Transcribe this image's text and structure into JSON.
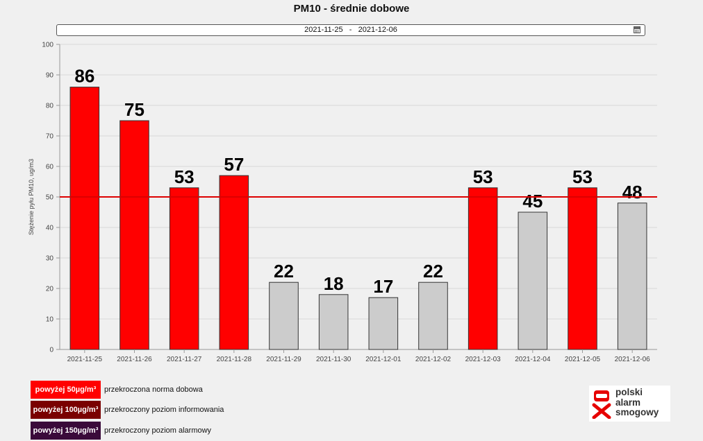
{
  "title": "PM10 - średnie dobowe",
  "date_range": {
    "from": "2021-11-25",
    "separator": "-",
    "to": "2021-12-06"
  },
  "colors": {
    "exceeded": "#ff0000",
    "normal": "#cccccc",
    "threshold_line": "#dd0000",
    "info_level": "#7a0000",
    "alarm_level": "#3a0a3a"
  },
  "chart_data": {
    "type": "bar",
    "title": "PM10 - średnie dobowe",
    "ylabel": "Stężenie pyłu PM10, ug/m3",
    "xlabel": "",
    "ylim": [
      0,
      100
    ],
    "yticks": [
      0,
      10,
      20,
      30,
      40,
      50,
      60,
      70,
      80,
      90,
      100
    ],
    "grid": true,
    "threshold": 50,
    "categories": [
      "2021-11-25",
      "2021-11-26",
      "2021-11-27",
      "2021-11-28",
      "2021-11-29",
      "2021-11-30",
      "2021-12-01",
      "2021-12-02",
      "2021-12-03",
      "2021-12-04",
      "2021-12-05",
      "2021-12-06"
    ],
    "values": [
      86,
      75,
      53,
      57,
      22,
      18,
      17,
      22,
      53,
      45,
      53,
      48
    ]
  },
  "legend": [
    {
      "badge": "powyżej 50µg/m³",
      "text": "przekroczona norma dobowa",
      "color": "#ff0000"
    },
    {
      "badge": "powyżej 100µg/m³",
      "text": "przekroczony poziom informowania",
      "color": "#7a0000"
    },
    {
      "badge": "powyżej 150µg/m³",
      "text": "przekroczony poziom alarmowy",
      "color": "#3a0a3a"
    }
  ],
  "logo": {
    "line1": "polski",
    "line2": "alarm",
    "line3": "smogowy"
  }
}
